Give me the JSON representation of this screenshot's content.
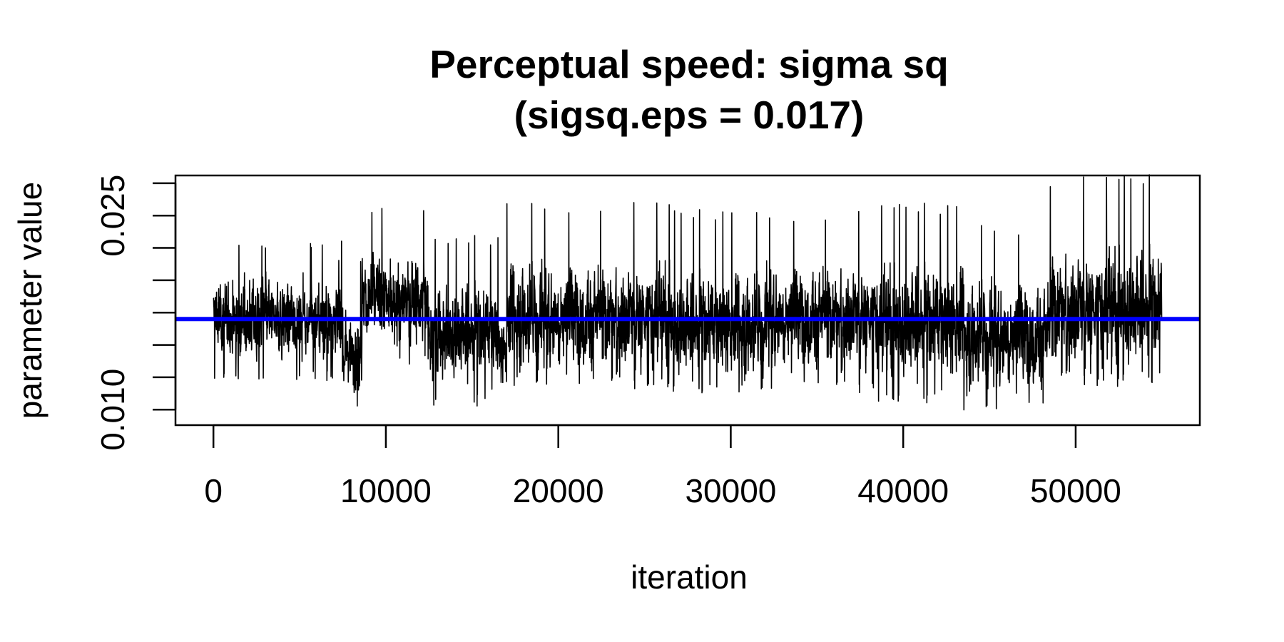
{
  "chart_data": {
    "type": "line",
    "title": [
      "Perceptual speed: sigma sq",
      "(sigsq.eps = 0.017)"
    ],
    "xlabel": "iteration",
    "ylabel": "parameter value",
    "xlim": [
      -2200,
      57200
    ],
    "ylim": [
      0.0088,
      0.0281
    ],
    "x_ticks": [
      0,
      10000,
      20000,
      30000,
      40000,
      50000
    ],
    "x_tick_labels": [
      "0",
      "10000",
      "20000",
      "30000",
      "40000",
      "50000"
    ],
    "y_ticks": [
      0.01,
      0.0125,
      0.015,
      0.0175,
      0.02,
      0.0225,
      0.025,
      0.0275
    ],
    "y_tick_labels": [
      "0.010",
      "",
      "",
      "",
      "",
      "",
      "0.025",
      ""
    ],
    "grid": false,
    "reference_line": {
      "y": 0.017,
      "color": "#0000ff"
    },
    "series": [
      {
        "color": "#000000",
        "x_start": 0,
        "x_end": 55000,
        "regimes": [
          {
            "from": 0,
            "to": 7500,
            "mean": 0.017,
            "low": 0.0122,
            "high": 0.0232
          },
          {
            "from": 7500,
            "to": 8600,
            "mean": 0.0146,
            "low": 0.0102,
            "high": 0.0215
          },
          {
            "from": 8600,
            "to": 12500,
            "mean": 0.0185,
            "low": 0.0135,
            "high": 0.0258
          },
          {
            "from": 12500,
            "to": 16500,
            "mean": 0.016,
            "low": 0.01,
            "high": 0.0235
          },
          {
            "from": 16500,
            "to": 17000,
            "mean": 0.0145,
            "low": 0.0102,
            "high": 0.02
          },
          {
            "from": 17000,
            "to": 26500,
            "mean": 0.0172,
            "low": 0.0115,
            "high": 0.0262
          },
          {
            "from": 26500,
            "to": 32000,
            "mean": 0.0165,
            "low": 0.011,
            "high": 0.0255
          },
          {
            "from": 32000,
            "to": 38500,
            "mean": 0.0172,
            "low": 0.0112,
            "high": 0.0255
          },
          {
            "from": 38500,
            "to": 43500,
            "mean": 0.0167,
            "low": 0.0102,
            "high": 0.026
          },
          {
            "from": 43500,
            "to": 48500,
            "mean": 0.0158,
            "low": 0.0096,
            "high": 0.0245
          },
          {
            "from": 48500,
            "to": 55000,
            "mean": 0.0178,
            "low": 0.0118,
            "high": 0.0282
          }
        ]
      }
    ]
  }
}
